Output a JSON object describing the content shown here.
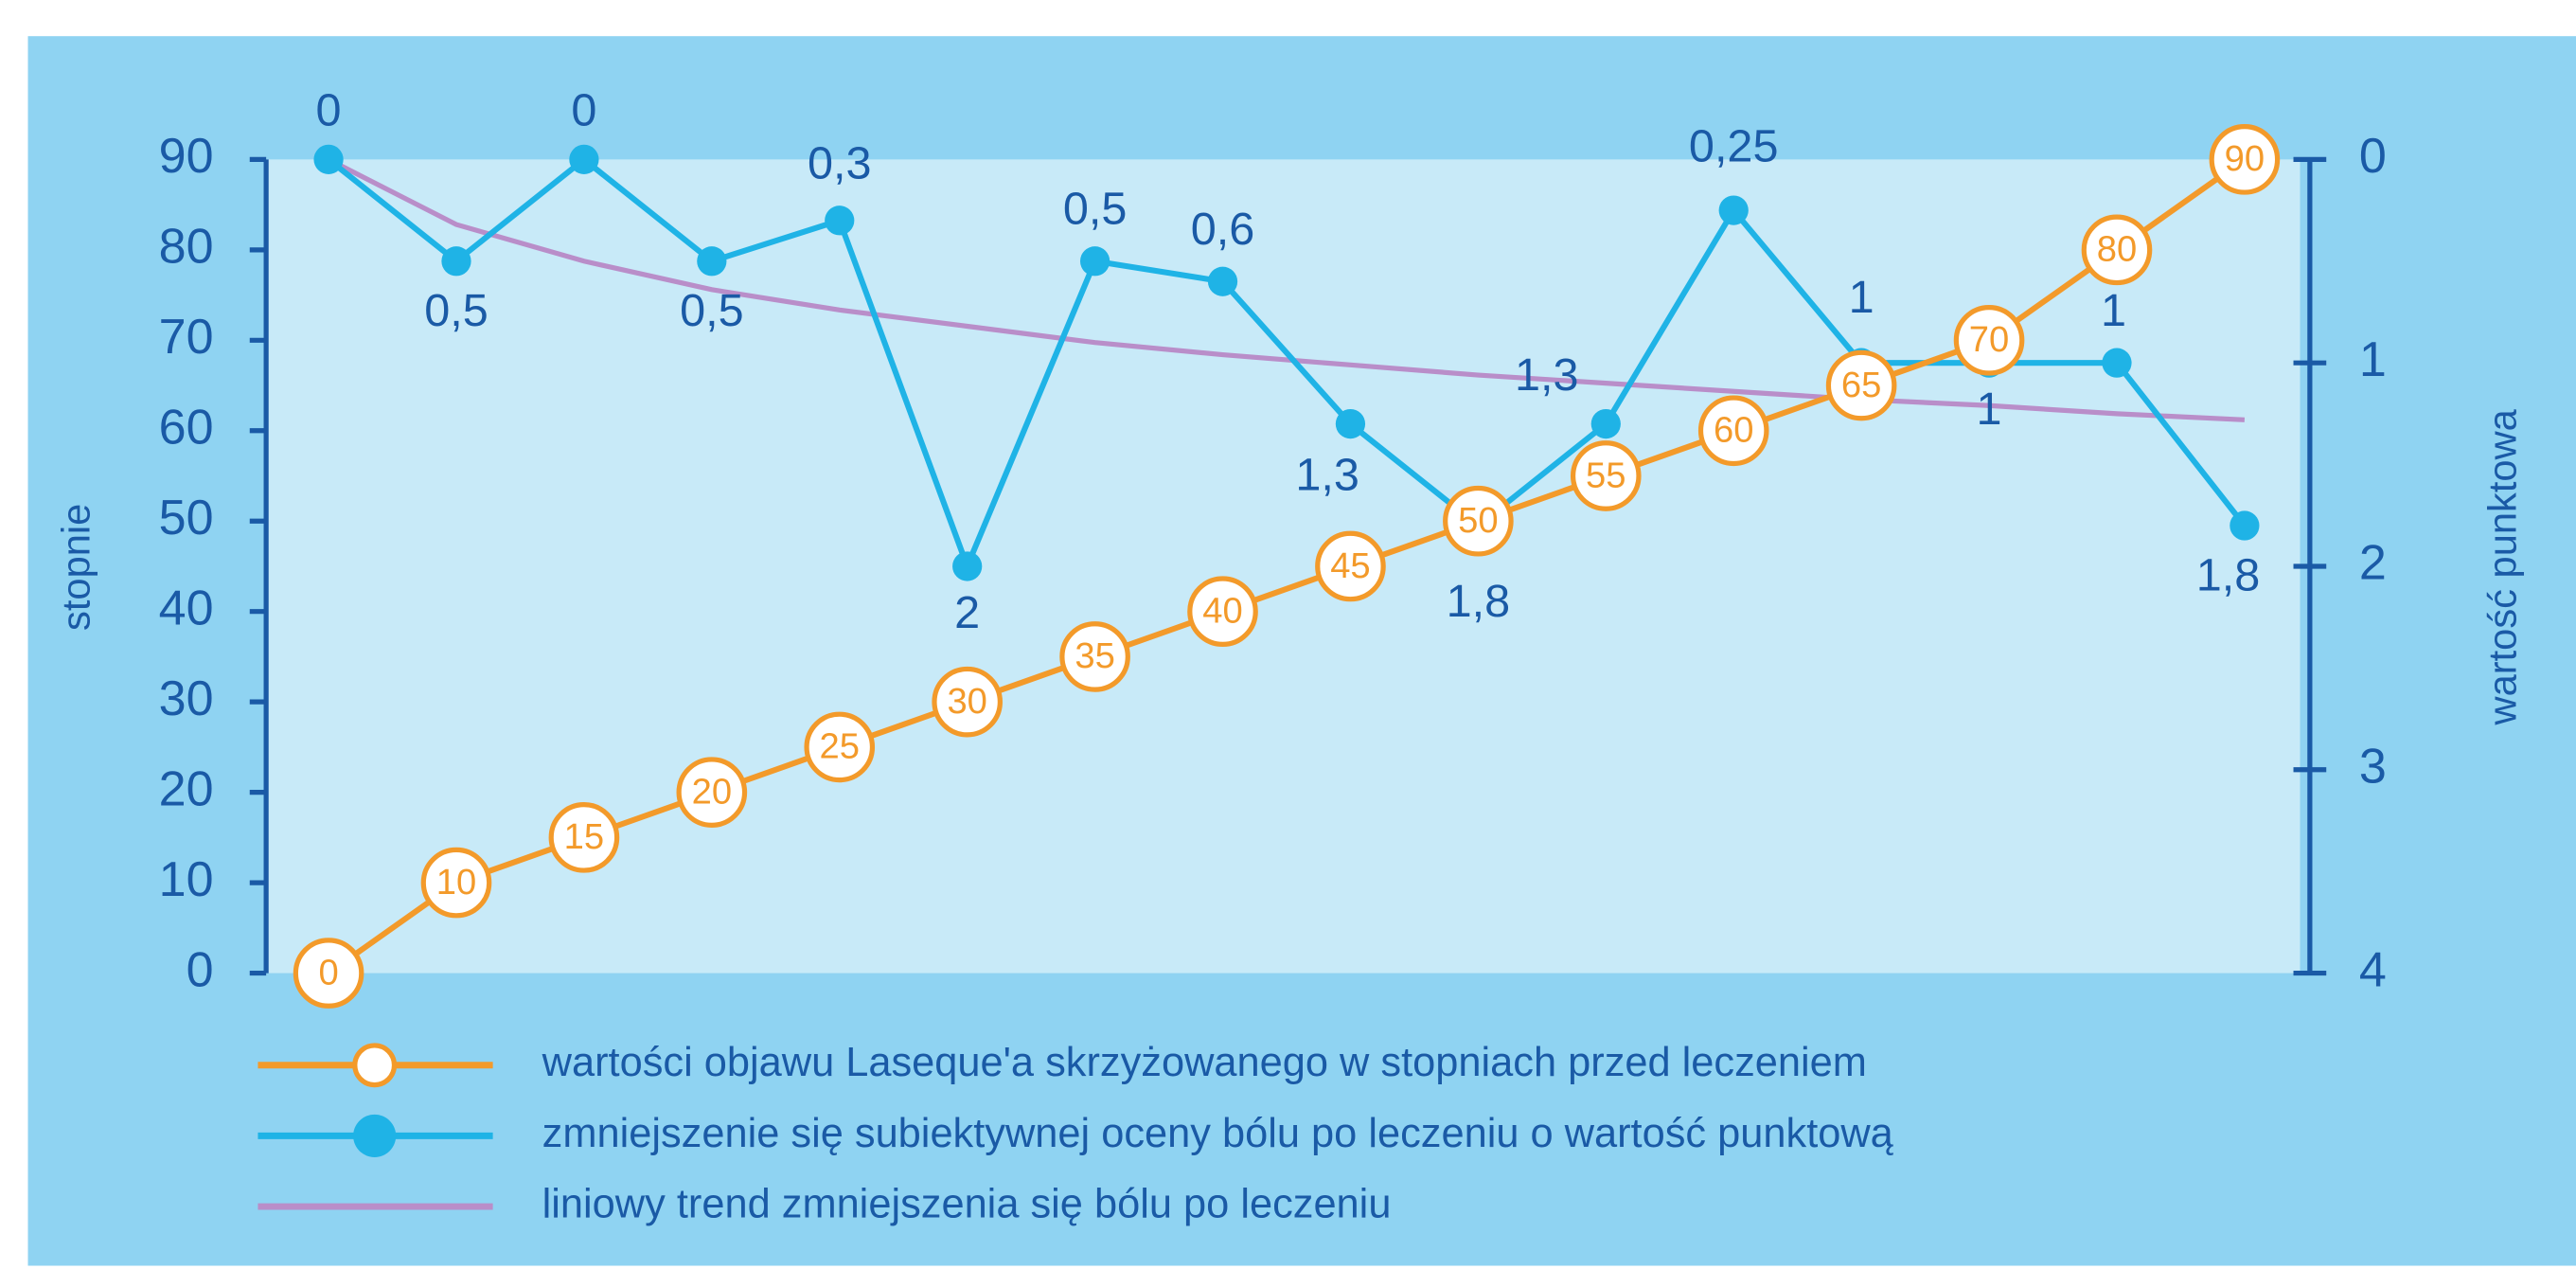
{
  "chart_data": {
    "type": "line",
    "y_label": "stopnie",
    "y2_label": "wartość punktowa",
    "categories": [
      null,
      null,
      null,
      null,
      null,
      null,
      null,
      null,
      null,
      null,
      null,
      null,
      null,
      null,
      null,
      null
    ],
    "ylim": [
      0,
      90
    ],
    "yticks": [
      0,
      10,
      20,
      30,
      40,
      50,
      60,
      70,
      80,
      90
    ],
    "y2lim": [
      0,
      4
    ],
    "y2ticks": [
      0,
      1,
      2,
      3,
      4
    ],
    "y2_inverted": true,
    "grid": false,
    "series": [
      {
        "name": "wartości objawu Laseque'a skrzyżowanego w stopniach przed leczeniem",
        "color": "#f39a2a",
        "marker": "hollow",
        "values": [
          0,
          10,
          15,
          20,
          25,
          30,
          35,
          40,
          45,
          50,
          55,
          60,
          65,
          70,
          80,
          90
        ]
      },
      {
        "name": "zmniejszenie się subiektywnej oceny bólu po leczeniu o wartość punktową",
        "color": "#1fb3e6",
        "marker": "filled",
        "axis": "y2",
        "values": [
          0,
          0.5,
          0,
          0.5,
          0.3,
          2,
          0.5,
          0.6,
          1.3,
          1.8,
          1.3,
          0.25,
          1,
          1,
          1,
          1.8
        ],
        "value_labels": [
          "0",
          "0,5",
          "0",
          "0,5",
          "0,3",
          "2",
          "0,5",
          "0,6",
          "1,3",
          "1,8",
          "1,3",
          "0,25",
          "1",
          "1",
          "1",
          "1,8"
        ]
      },
      {
        "name": "liniowy trend zmniejszenia się bólu po leczeniu",
        "color": "#b98ec9",
        "marker": "none",
        "axis": "y2",
        "values": [
          0,
          0.32,
          0.5,
          0.64,
          0.74,
          0.82,
          0.9,
          0.96,
          1.01,
          1.06,
          1.1,
          1.14,
          1.18,
          1.21,
          1.25,
          1.28
        ]
      }
    ]
  }
}
